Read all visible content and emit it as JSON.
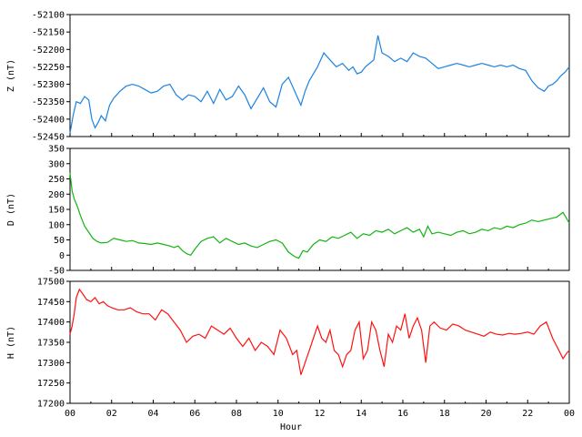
{
  "chart_data": [
    {
      "type": "line",
      "ylabel": "Z (nT)",
      "ylim": [
        -52450,
        -52100
      ],
      "yticks": [
        -52100,
        -52150,
        -52200,
        -52250,
        -52300,
        -52350,
        -52400,
        -52450
      ],
      "xlim": [
        0,
        24
      ],
      "color": "#1a82e2",
      "series": [
        {
          "x": [
            0,
            0.15,
            0.3,
            0.5,
            0.7,
            0.9,
            1.05,
            1.2,
            1.35,
            1.5,
            1.7,
            1.9,
            2.1,
            2.4,
            2.7,
            3.0,
            3.3,
            3.6,
            3.9,
            4.2,
            4.5,
            4.8,
            5.1,
            5.4,
            5.7,
            6.0,
            6.3,
            6.6,
            6.9,
            7.2,
            7.5,
            7.8,
            8.1,
            8.4,
            8.7,
            9.0,
            9.3,
            9.6,
            9.9,
            10.2,
            10.5,
            10.8,
            11.1,
            11.3,
            11.5,
            11.7,
            11.9,
            12.2,
            12.5,
            12.8,
            13.1,
            13.4,
            13.6,
            13.8,
            14.0,
            14.2,
            14.4,
            14.6,
            14.8,
            15.0,
            15.3,
            15.6,
            15.9,
            16.2,
            16.5,
            16.8,
            17.1,
            17.4,
            17.7,
            18.0,
            18.3,
            18.6,
            18.9,
            19.2,
            19.5,
            19.8,
            20.1,
            20.4,
            20.7,
            21.0,
            21.3,
            21.6,
            21.9,
            22.2,
            22.5,
            22.8,
            23.0,
            23.2,
            23.4,
            23.6,
            23.8,
            24.0
          ],
          "values": [
            -52440,
            -52390,
            -52350,
            -52355,
            -52335,
            -52345,
            -52400,
            -52425,
            -52410,
            -52390,
            -52405,
            -52360,
            -52340,
            -52320,
            -52305,
            -52300,
            -52305,
            -52315,
            -52325,
            -52320,
            -52305,
            -52300,
            -52330,
            -52345,
            -52330,
            -52335,
            -52350,
            -52320,
            -52355,
            -52315,
            -52345,
            -52335,
            -52305,
            -52330,
            -52370,
            -52340,
            -52310,
            -52350,
            -52365,
            -52300,
            -52280,
            -52320,
            -52360,
            -52320,
            -52290,
            -52270,
            -52250,
            -52210,
            -52230,
            -52250,
            -52240,
            -52260,
            -52250,
            -52270,
            -52265,
            -52250,
            -52240,
            -52230,
            -52160,
            -52210,
            -52220,
            -52235,
            -52225,
            -52235,
            -52210,
            -52220,
            -52225,
            -52240,
            -52255,
            -52250,
            -52245,
            -52240,
            -52245,
            -52250,
            -52245,
            -52240,
            -52245,
            -52250,
            -52245,
            -52250,
            -52245,
            -52255,
            -52260,
            -52290,
            -52310,
            -52320,
            -52305,
            -52300,
            -52290,
            -52275,
            -52265,
            -52250
          ]
        }
      ]
    },
    {
      "type": "line",
      "ylabel": "D (nT)",
      "ylim": [
        -50,
        350
      ],
      "yticks": [
        350,
        300,
        250,
        200,
        150,
        100,
        50,
        0,
        -50
      ],
      "xlim": [
        0,
        24
      ],
      "color": "#11b511",
      "series": [
        {
          "x": [
            0,
            0.1,
            0.2,
            0.35,
            0.5,
            0.7,
            0.9,
            1.1,
            1.3,
            1.5,
            1.8,
            2.1,
            2.4,
            2.7,
            3.0,
            3.3,
            3.6,
            3.9,
            4.2,
            4.5,
            4.8,
            5.0,
            5.2,
            5.4,
            5.6,
            5.8,
            6.0,
            6.3,
            6.6,
            6.9,
            7.2,
            7.5,
            7.8,
            8.1,
            8.4,
            8.7,
            9.0,
            9.3,
            9.6,
            9.9,
            10.2,
            10.5,
            10.8,
            11.0,
            11.2,
            11.4,
            11.7,
            12.0,
            12.3,
            12.6,
            12.9,
            13.2,
            13.5,
            13.8,
            14.1,
            14.4,
            14.7,
            15.0,
            15.3,
            15.6,
            15.9,
            16.2,
            16.5,
            16.8,
            17.0,
            17.2,
            17.4,
            17.7,
            18.0,
            18.3,
            18.6,
            18.9,
            19.2,
            19.5,
            19.8,
            20.1,
            20.4,
            20.7,
            21.0,
            21.3,
            21.6,
            21.9,
            22.2,
            22.5,
            22.8,
            23.1,
            23.4,
            23.7,
            24.0
          ],
          "values": [
            270,
            210,
            185,
            160,
            130,
            95,
            75,
            55,
            45,
            40,
            42,
            55,
            50,
            45,
            48,
            40,
            38,
            35,
            40,
            35,
            30,
            25,
            30,
            15,
            5,
            0,
            20,
            45,
            55,
            60,
            40,
            55,
            45,
            35,
            40,
            30,
            25,
            35,
            45,
            50,
            40,
            10,
            -5,
            -10,
            15,
            10,
            35,
            50,
            45,
            60,
            55,
            65,
            75,
            55,
            70,
            65,
            80,
            75,
            85,
            70,
            80,
            90,
            75,
            85,
            60,
            95,
            70,
            75,
            70,
            65,
            75,
            80,
            70,
            75,
            85,
            80,
            90,
            85,
            95,
            90,
            100,
            105,
            115,
            110,
            115,
            120,
            125,
            140,
            105
          ]
        }
      ]
    },
    {
      "type": "line",
      "ylabel": "H (nT)",
      "ylim": [
        17200,
        17500
      ],
      "yticks": [
        17500,
        17450,
        17400,
        17350,
        17300,
        17250,
        17200
      ],
      "xlim": [
        0,
        24
      ],
      "xticks": [
        "00",
        "02",
        "04",
        "06",
        "08",
        "10",
        "12",
        "14",
        "16",
        "18",
        "20",
        "22",
        "00"
      ],
      "xlabel": "Hour",
      "color": "#ff1111",
      "series": [
        {
          "x": [
            0,
            0.1,
            0.2,
            0.3,
            0.45,
            0.6,
            0.8,
            1.0,
            1.2,
            1.4,
            1.6,
            1.8,
            2.0,
            2.3,
            2.6,
            2.9,
            3.2,
            3.5,
            3.8,
            4.1,
            4.4,
            4.7,
            5.0,
            5.3,
            5.6,
            5.9,
            6.2,
            6.5,
            6.8,
            7.1,
            7.4,
            7.7,
            8.0,
            8.3,
            8.6,
            8.9,
            9.2,
            9.5,
            9.8,
            10.1,
            10.4,
            10.7,
            10.9,
            11.1,
            11.3,
            11.5,
            11.7,
            11.9,
            12.1,
            12.3,
            12.5,
            12.7,
            12.9,
            13.1,
            13.3,
            13.5,
            13.7,
            13.9,
            14.1,
            14.3,
            14.5,
            14.7,
            14.9,
            15.1,
            15.3,
            15.5,
            15.7,
            15.9,
            16.1,
            16.3,
            16.5,
            16.7,
            16.9,
            17.1,
            17.3,
            17.5,
            17.8,
            18.1,
            18.4,
            18.7,
            19.0,
            19.3,
            19.6,
            19.9,
            20.2,
            20.5,
            20.8,
            21.1,
            21.4,
            21.7,
            22.0,
            22.3,
            22.6,
            22.9,
            23.2,
            23.5,
            23.7,
            23.9,
            24.0
          ],
          "values": [
            17370,
            17390,
            17420,
            17460,
            17480,
            17470,
            17455,
            17450,
            17460,
            17445,
            17450,
            17440,
            17435,
            17430,
            17430,
            17435,
            17425,
            17420,
            17420,
            17405,
            17430,
            17420,
            17400,
            17380,
            17350,
            17365,
            17370,
            17360,
            17390,
            17380,
            17370,
            17385,
            17360,
            17340,
            17360,
            17330,
            17350,
            17340,
            17320,
            17380,
            17360,
            17320,
            17330,
            17270,
            17300,
            17330,
            17360,
            17390,
            17360,
            17350,
            17380,
            17330,
            17320,
            17290,
            17320,
            17330,
            17380,
            17400,
            17310,
            17330,
            17400,
            17380,
            17330,
            17290,
            17370,
            17350,
            17390,
            17380,
            17420,
            17360,
            17390,
            17410,
            17380,
            17300,
            17390,
            17400,
            17385,
            17380,
            17395,
            17390,
            17380,
            17375,
            17370,
            17365,
            17375,
            17370,
            17368,
            17372,
            17370,
            17372,
            17375,
            17370,
            17390,
            17400,
            17360,
            17330,
            17310,
            17325,
            17330
          ]
        }
      ]
    }
  ]
}
